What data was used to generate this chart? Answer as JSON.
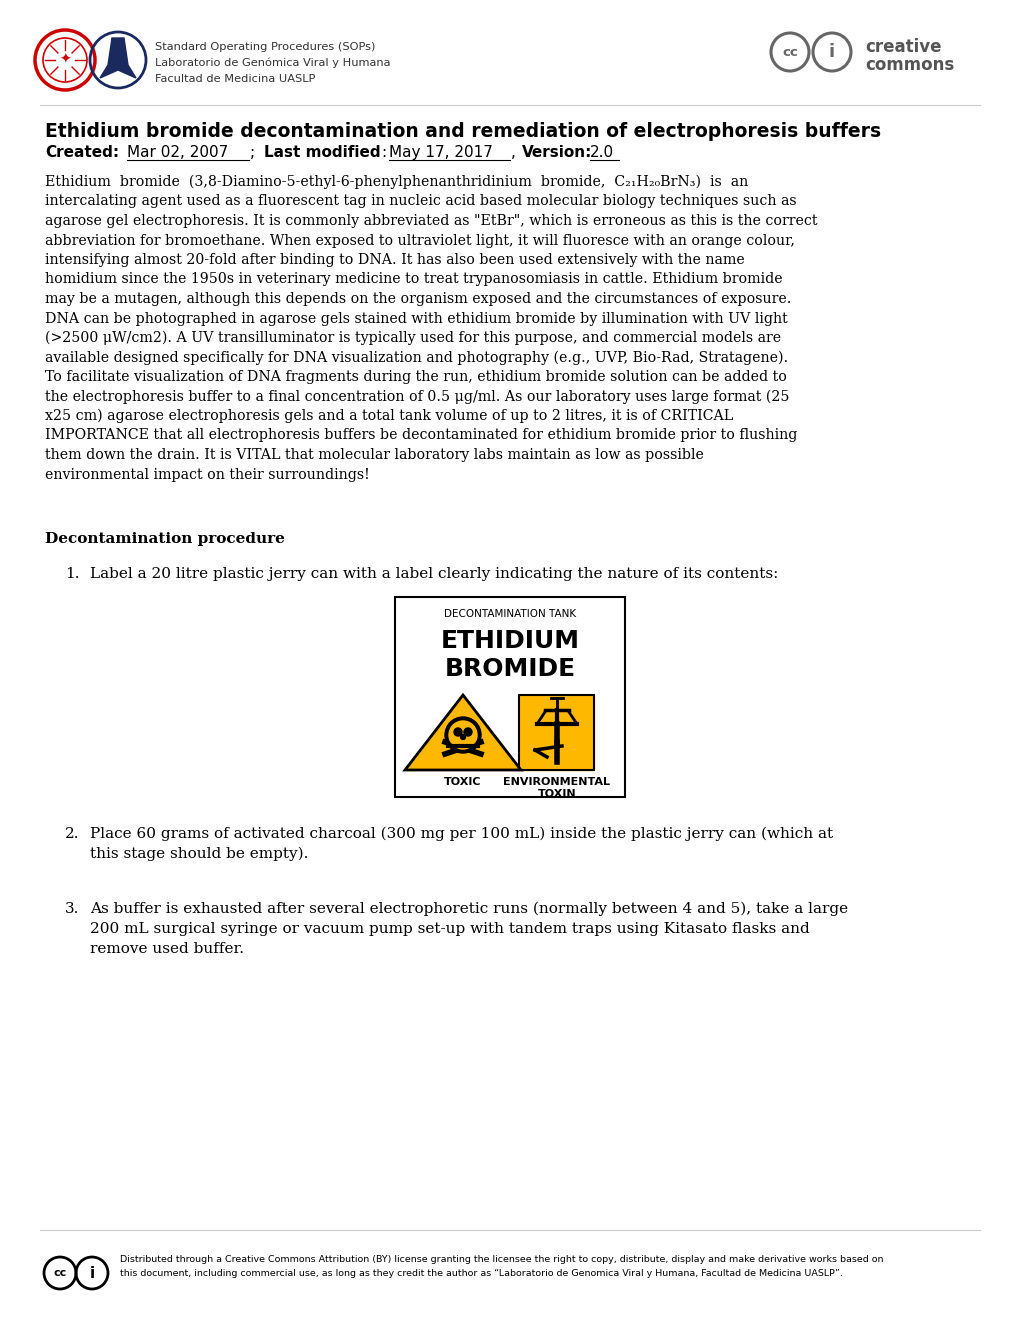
{
  "bg_color": "#ffffff",
  "title_line1": "Ethidium bromide decontamination and remediation of electrophoresis buffers",
  "header_line1": "Standard Operating Procedures (SOPs)",
  "header_line2": "Laboratorio de Genómica Viral y Humana",
  "header_line3": "Facultad de Medicina UASLP",
  "body_lines": [
    "Ethidium  bromide  (3,8-Diamino-5-ethyl-6-phenylphenanthridinium  bromide,  C₂₁H₂₀BrN₃)  is  an",
    "intercalating agent used as a fluorescent tag in nucleic acid based molecular biology techniques such as",
    "agarose gel electrophoresis. It is commonly abbreviated as \"EtBr\", which is erroneous as this is the correct",
    "abbreviation for bromoethane. When exposed to ultraviolet light, it will fluoresce with an orange colour,",
    "intensifying almost 20-fold after binding to DNA. It has also been used extensively with the name",
    "homidium since the 1950s in veterinary medicine to treat trypanosomiasis in cattle. Ethidium bromide",
    "may be a mutagen, although this depends on the organism exposed and the circumstances of exposure.",
    "DNA can be photographed in agarose gels stained with ethidium bromide by illumination with UV light",
    "(>2500 μW/cm2). A UV transilluminator is typically used for this purpose, and commercial models are",
    "available designed specifically for DNA visualization and photography (e.g., UVP, Bio-Rad, Stratagene).",
    "To facilitate visualization of DNA fragments during the run, ethidium bromide solution can be added to",
    "the electrophoresis buffer to a final concentration of 0.5 μg/ml. As our laboratory uses large format (25",
    "x25 cm) agarose electrophoresis gels and a total tank volume of up to 2 litres, it is of CRITICAL",
    "IMPORTANCE that all electrophoresis buffers be decontaminated for ethidium bromide prior to flushing",
    "them down the drain. It is VITAL that molecular laboratory labs maintain as low as possible",
    "environmental impact on their surroundings!"
  ],
  "section_title": "Decontamination procedure",
  "item1": "Label a 20 litre plastic jerry can with a label clearly indicating the nature of its contents:",
  "item2_lines": [
    "Place 60 grams of activated charcoal (300 mg per 100 mL) inside the plastic jerry can (which at",
    "this stage should be empty)."
  ],
  "item3_lines": [
    "As buffer is exhausted after several electrophoretic runs (normally between 4 and 5), take a large",
    "200 mL surgical syringe or vacuum pump set-up with tandem traps using Kitasato flasks and",
    "remove used buffer."
  ],
  "footer_lines": [
    "Distributed through a Creative Commons Attribution (BY) license granting the licensee the right to copy, distribute, display and make derivative works based on",
    "this document, including commercial use, as long as they credit the author as “Laboratorio de Genomica Viral y Humana, Facultad de Medicina UASLP”."
  ],
  "label_title": "DECONTAMINATION TANK",
  "label_line1": "ETHIDIUM",
  "label_line2": "BROMIDE",
  "label_toxic": "TOXIC",
  "label_env": "ENVIRONMENTAL\nTOXIN",
  "yellow": "#FFB800",
  "black": "#000000",
  "gray_line": "#cccccc",
  "text_dark": "#000000",
  "text_gray": "#444444"
}
